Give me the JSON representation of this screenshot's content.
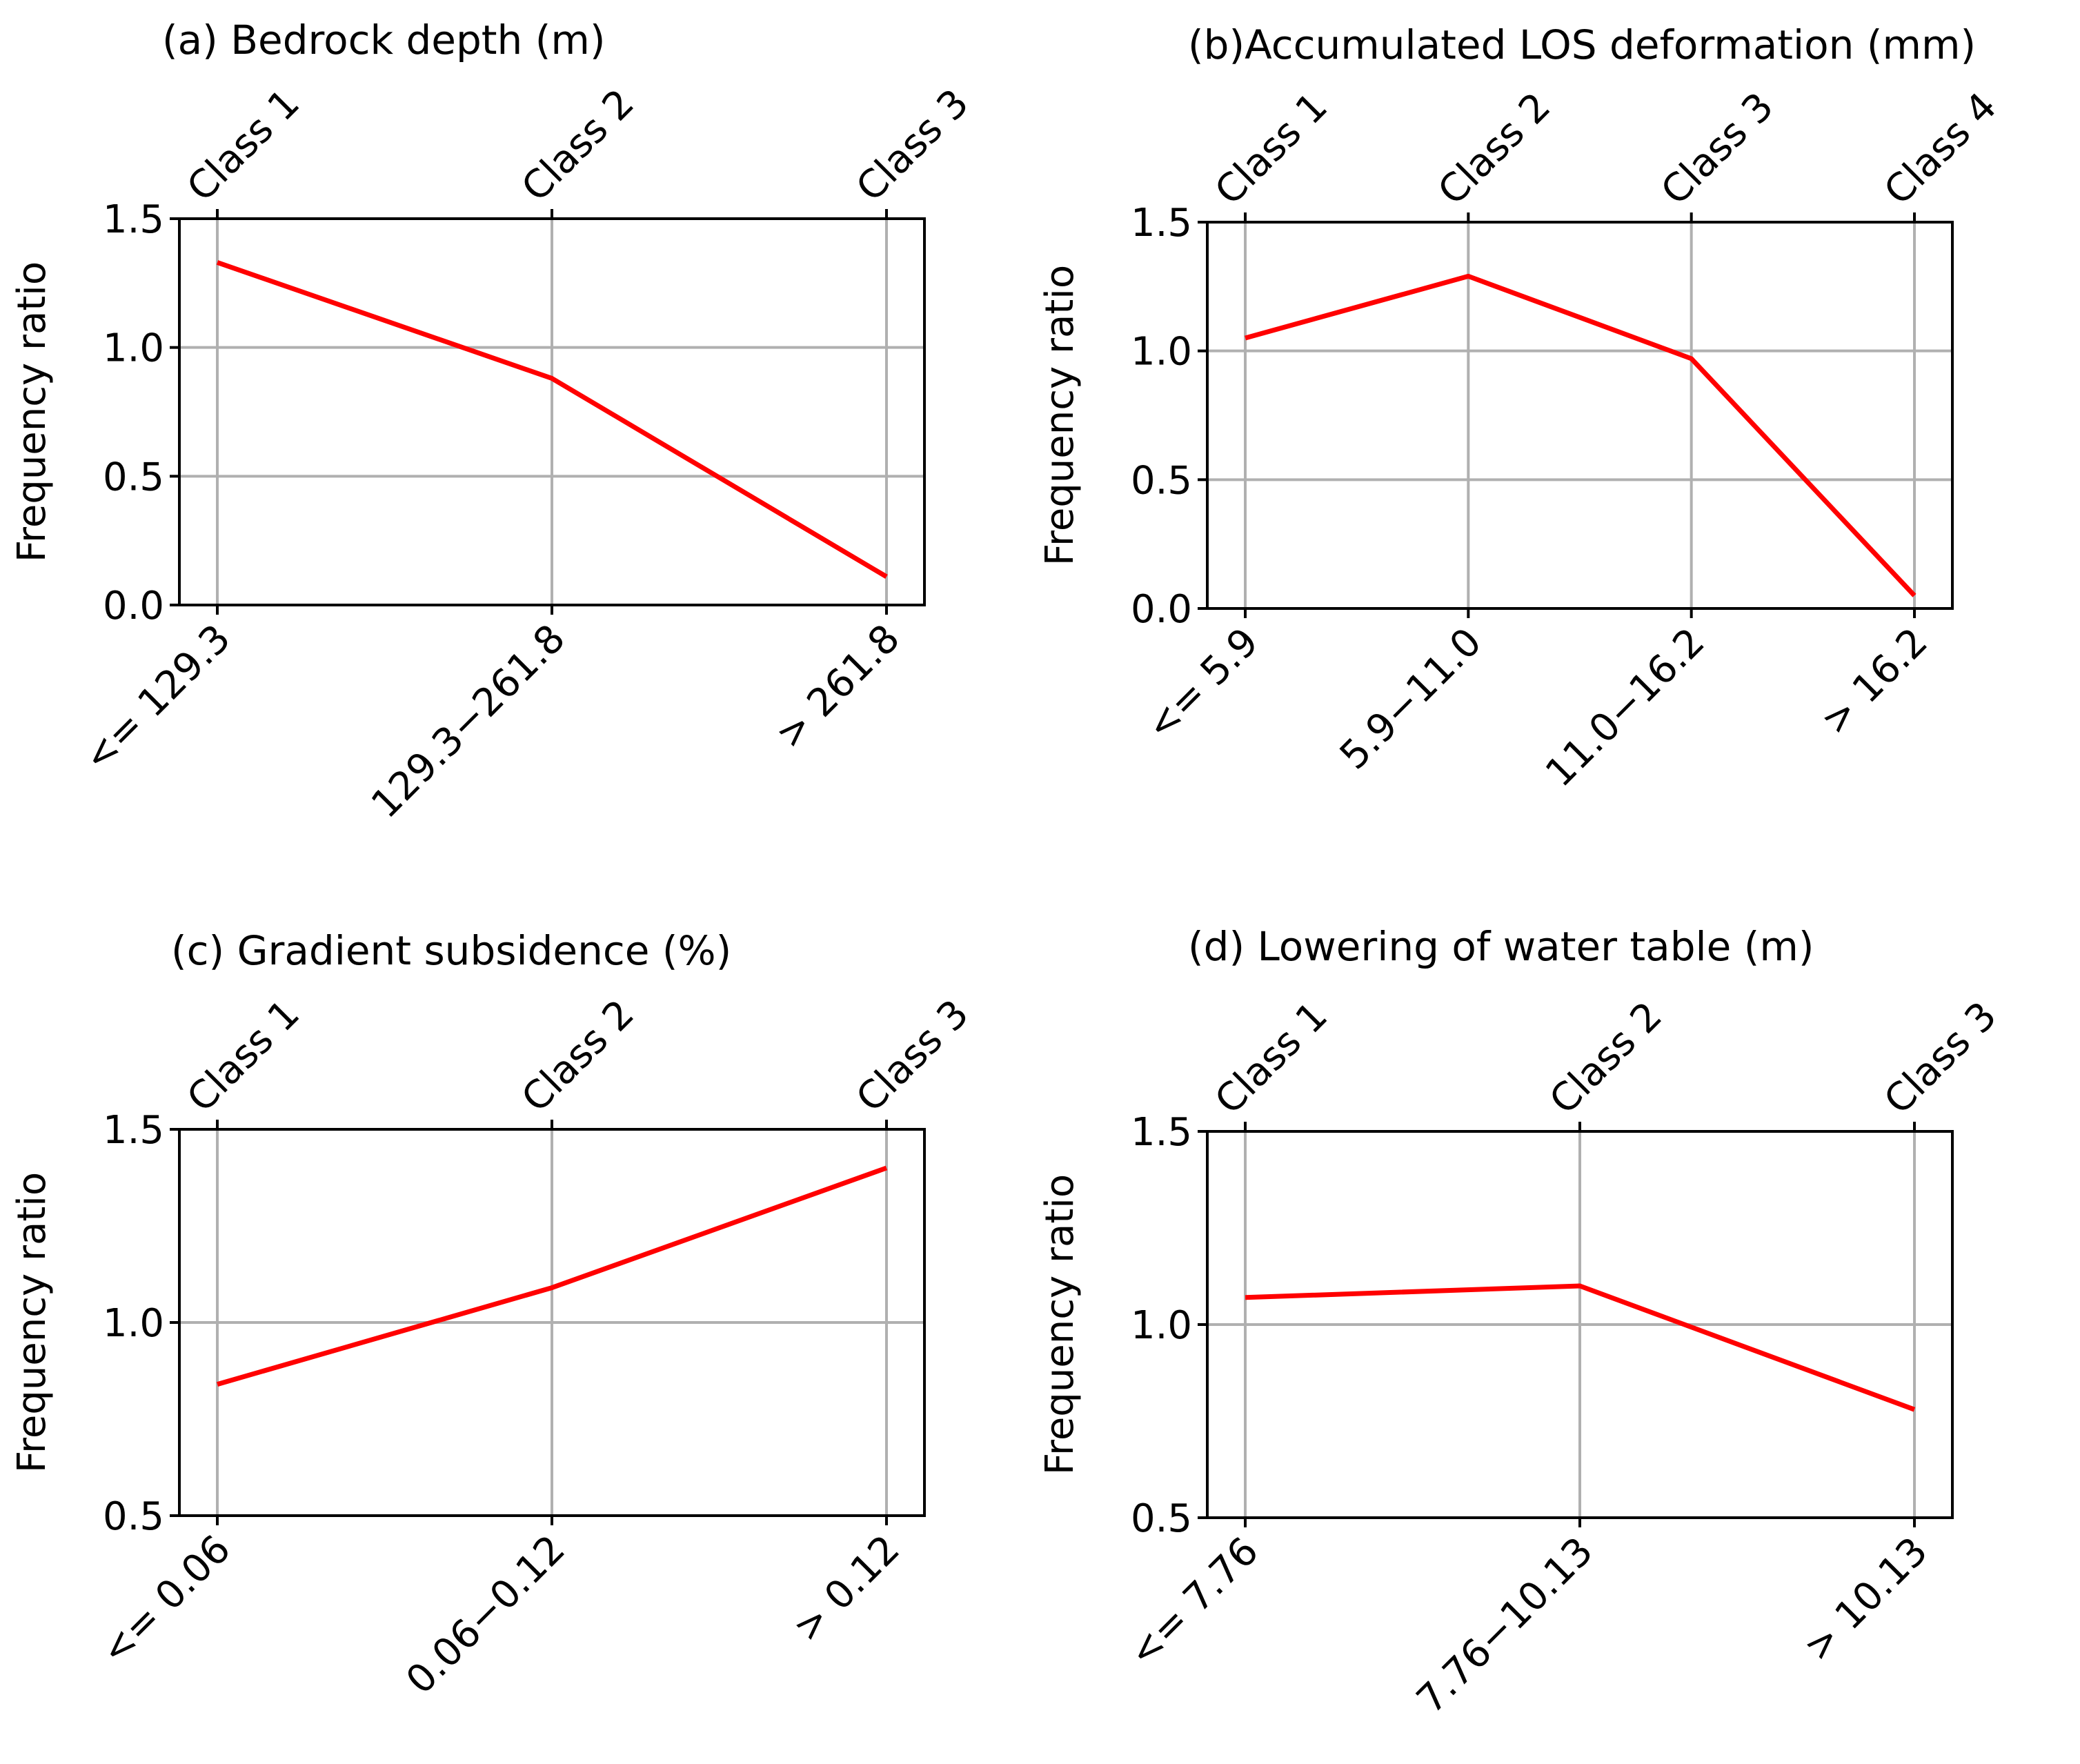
{
  "chart_data": [
    {
      "type": "line",
      "title": "(a) Bedrock depth (m)",
      "ylabel": "Frequency ratio",
      "ylim": [
        0,
        1.5
      ],
      "yticks": [
        "0.0",
        "0.5",
        "1.0",
        "1.5"
      ],
      "categories": [
        "<= 129.3",
        "129.3−261.8",
        "> 261.8"
      ],
      "top_categories": [
        "Class 1",
        "Class 2",
        "Class 3"
      ],
      "series": [
        {
          "name": "Frequency ratio",
          "values": [
            1.33,
            0.88,
            0.11
          ]
        }
      ],
      "color": "#ff0000",
      "grid": true
    },
    {
      "type": "line",
      "title": "(b)Accumulated LOS deformation (mm)",
      "ylabel": "Frequency ratio",
      "ylim": [
        0,
        1.5
      ],
      "yticks": [
        "0.0",
        "0.5",
        "1.0",
        "1.5"
      ],
      "categories": [
        "<= 5.9",
        "5.9−11.0",
        "11.0−16.2",
        "> 16.2"
      ],
      "top_categories": [
        "Class 1",
        "Class 2",
        "Class 3",
        "Class 4"
      ],
      "series": [
        {
          "name": "Frequency ratio",
          "values": [
            1.05,
            1.29,
            0.97,
            0.05
          ]
        }
      ],
      "color": "#ff0000",
      "grid": true
    },
    {
      "type": "line",
      "title": "(c) Gradient subsidence (%)",
      "ylabel": "Frequency ratio",
      "ylim": [
        0.5,
        1.5
      ],
      "yticks": [
        "0.5",
        "1.0",
        "1.5"
      ],
      "categories": [
        "<= 0.06",
        "0.06−0.12",
        "> 0.12"
      ],
      "top_categories": [
        "Class 1",
        "Class 2",
        "Class 3"
      ],
      "series": [
        {
          "name": "Frequency ratio",
          "values": [
            0.84,
            1.09,
            1.4
          ]
        }
      ],
      "color": "#ff0000",
      "grid": true
    },
    {
      "type": "line",
      "title": "(d) Lowering of water table (m)",
      "ylabel": "Frequency ratio",
      "ylim": [
        0.5,
        1.5
      ],
      "yticks": [
        "0.5",
        "1.0",
        "1.5"
      ],
      "categories": [
        "<= 7.76",
        "7.76−10.13",
        "> 10.13"
      ],
      "top_categories": [
        "Class 1",
        "Class 2",
        "Class 3"
      ],
      "series": [
        {
          "name": "Frequency ratio",
          "values": [
            1.07,
            1.1,
            0.78
          ]
        }
      ],
      "color": "#ff0000",
      "grid": true
    }
  ]
}
